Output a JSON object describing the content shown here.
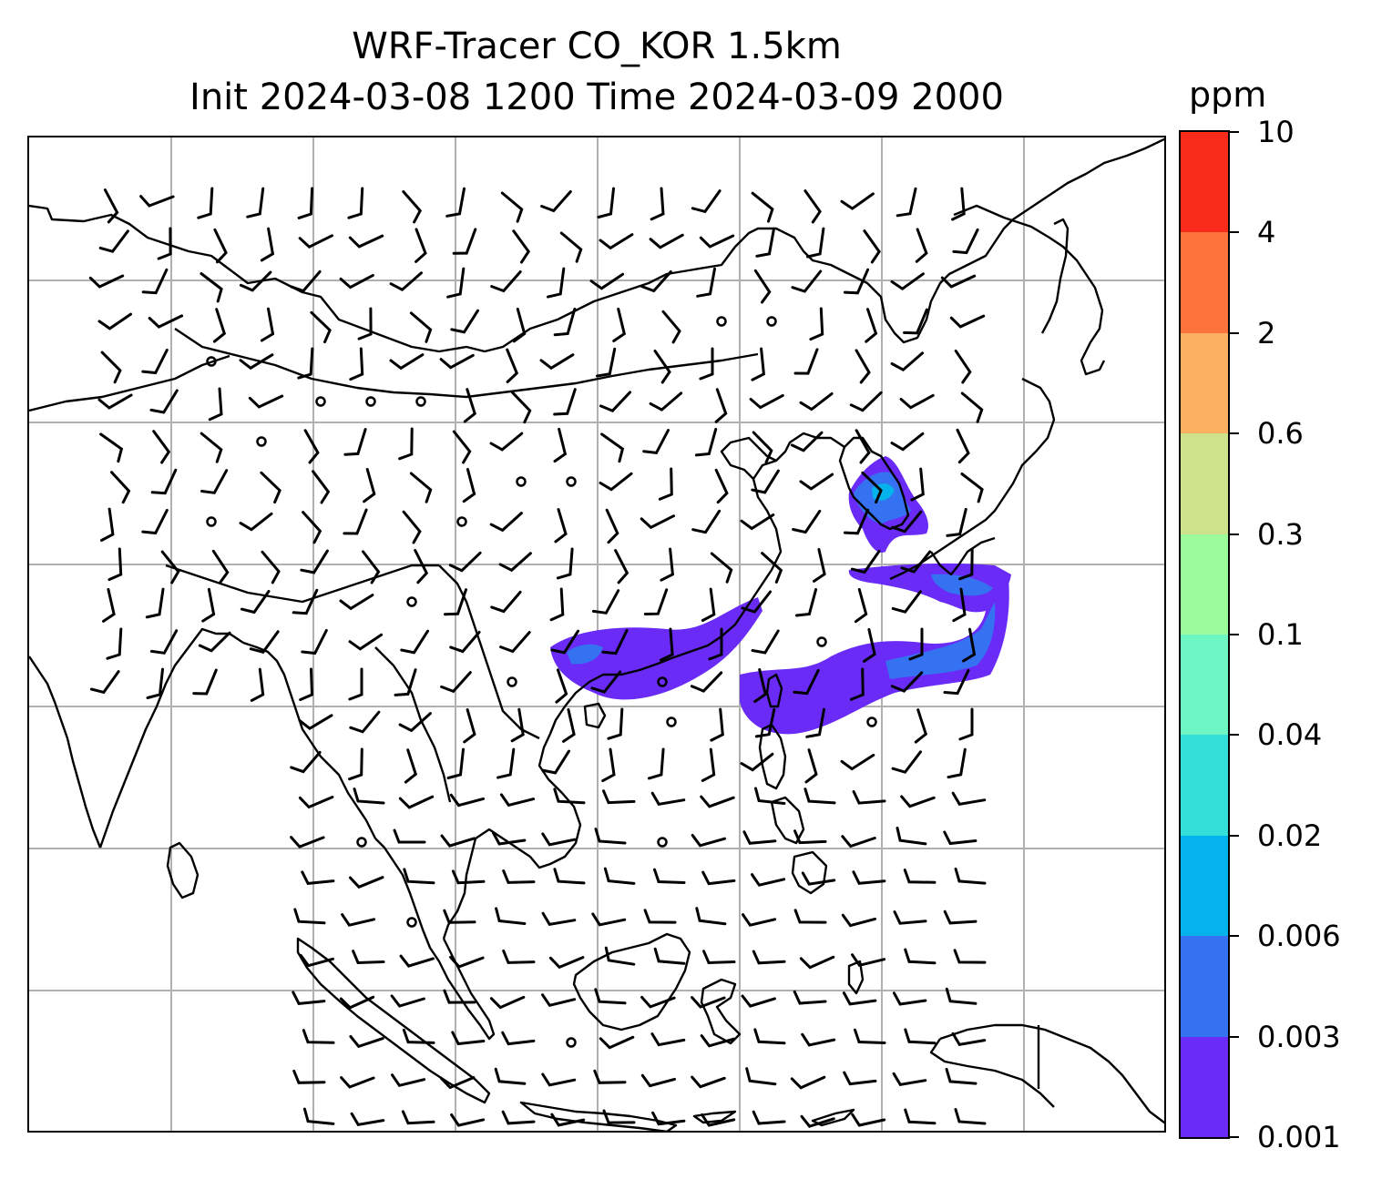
{
  "title": {
    "line1": "WRF-Tracer CO_KOR 1.5km",
    "line2": "Init 2024-03-08 1200 Time 2024-03-09 2000"
  },
  "colorbar": {
    "unit": "ppm",
    "ticks": [
      "0.001",
      "0.003",
      "0.006",
      "0.02",
      "0.04",
      "0.1",
      "0.3",
      "0.6",
      "2",
      "4",
      "10"
    ],
    "colors": [
      "#6a2bf7",
      "#3472f2",
      "#05b3ec",
      "#34ded9",
      "#6df5c3",
      "#9cfb9b",
      "#cde28a",
      "#fbb062",
      "#fc733b",
      "#f92b1a"
    ]
  },
  "map": {
    "grid": true,
    "gridColor": "#b0b0b0",
    "plume": {
      "outerColor": "#6a2bf7",
      "innerColor": "#3472f2",
      "coreColor": "#05b3ec"
    }
  }
}
